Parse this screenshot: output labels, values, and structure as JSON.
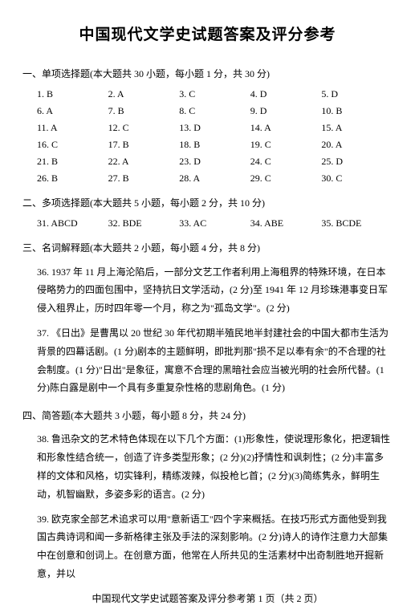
{
  "title": "中国现代文学史试题答案及评分参考",
  "sections": {
    "s1": {
      "head": "一、单项选择题(本大题共 30 小题，每小题 1 分，共 30 分)",
      "rows": [
        [
          "1. B",
          "2. A",
          "3. C",
          "4. D",
          "5. D"
        ],
        [
          "6. A",
          "7. B",
          "8. C",
          "9. D",
          "10. B"
        ],
        [
          "11. A",
          "12. C",
          "13. D",
          "14. A",
          "15. A"
        ],
        [
          "16. C",
          "17. B",
          "18. B",
          "19. C",
          "20. A"
        ],
        [
          "21. B",
          "22. A",
          "23. D",
          "24. C",
          "25. D"
        ],
        [
          "26. B",
          "27. B",
          "28. A",
          "29. C",
          "30. C"
        ]
      ]
    },
    "s2": {
      "head": "二、多项选择题(本大题共 5 小题，每小题 2 分，共 10 分)",
      "rows": [
        [
          "31. ABCD",
          "32. BDE",
          "33. AC",
          "34. ABE",
          "35. BCDE"
        ]
      ]
    },
    "s3": {
      "head": "三、名词解释题(本大题共 2 小题，每小题 4 分，共 8 分)",
      "items": [
        "36. 1937 年 11 月上海沦陷后，一部分文艺工作者利用上海租界的特殊环境，在日本侵略势力的四面包围中，坚持抗日文学活动，(2 分)至 1941 年 12 月珍珠港事变日军侵入租界止，历时四年零一个月，称之为\"孤岛文学\"。(2 分)",
        "37. 《日出》是曹禺以 20 世纪 30 年代初期半殖民地半封建社会的中国大都市生活为背景的四幕话剧。(1 分)剧本的主题鲜明，即批判那\"损不足以奉有余\"的不合理的社会制度。(1 分)\"日出\"是象征，寓意不合理的黑暗社会应当被光明的社会所代替。(1 分)陈白露是剧中一个具有多重复杂性格的悲剧角色。(1 分)"
      ]
    },
    "s4": {
      "head": "四、简答题(本大题共 3 小题，每小题 8 分，共 24 分)",
      "items": [
        "38. 鲁迅杂文的艺术特色体现在以下几个方面：(1)形象性，使说理形象化，把逻辑性和形象性结合统一，创造了许多类型形象；(2 分)(2)抒情性和讽刺性；(2 分)丰富多样的文体和风格，切实锋利，精练泼辣，似投枪匕首；(2 分)(3)简练隽永，鲜明生动，机智幽默，多姿多彩的语言。(2 分)",
        "39. 欧克家全部艺术追求可以用\"意新语工\"四个字来概括。在技巧形式方面他受到我国古典诗词和闻一多新格律主张及手法的深刻影响。(2 分)诗人的诗作注意力大部集中在创意和创词上。在创意方面，他常在人所共见的生活素材中出奇制胜地开掘新意，并以"
      ]
    }
  },
  "footer": "中国现代文学史试题答案及评分参考第 1 页（共 2 页）"
}
